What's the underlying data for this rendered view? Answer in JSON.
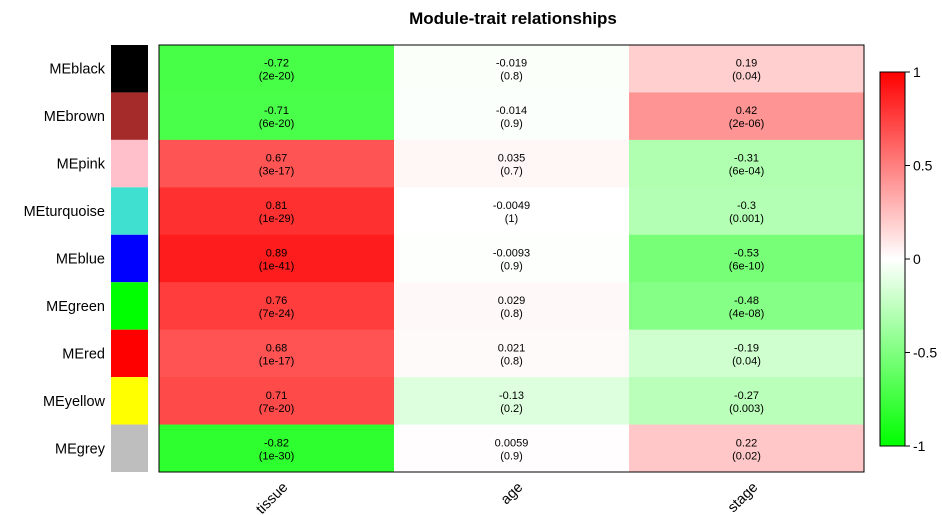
{
  "chart_data": {
    "type": "heatmap",
    "title": "Module-trait relationships",
    "rows": [
      {
        "label": "MEblack",
        "color": "#000000"
      },
      {
        "label": "MEbrown",
        "color": "#A52A2A"
      },
      {
        "label": "MEpink",
        "color": "#FFC0CB"
      },
      {
        "label": "MEturquoise",
        "color": "#40E0D0"
      },
      {
        "label": "MEblue",
        "color": "#0000FF"
      },
      {
        "label": "MEgreen",
        "color": "#00FF00"
      },
      {
        "label": "MEred",
        "color": "#FF0000"
      },
      {
        "label": "MEyellow",
        "color": "#FFFF00"
      },
      {
        "label": "MEgrey",
        "color": "#BEBEBE"
      }
    ],
    "columns": [
      "tissue",
      "age",
      "stage"
    ],
    "values": [
      [
        -0.72,
        -0.019,
        0.19
      ],
      [
        -0.71,
        -0.014,
        0.42
      ],
      [
        0.67,
        0.035,
        -0.31
      ],
      [
        0.81,
        -0.0049,
        -0.3
      ],
      [
        0.89,
        -0.0093,
        -0.53
      ],
      [
        0.76,
        0.029,
        -0.48
      ],
      [
        0.68,
        0.021,
        -0.19
      ],
      [
        0.71,
        -0.13,
        -0.27
      ],
      [
        -0.82,
        0.0059,
        0.22
      ]
    ],
    "cell_labels": [
      [
        [
          "-0.72",
          "(2e-20)"
        ],
        [
          "-0.019",
          "(0.8)"
        ],
        [
          "0.19",
          "(0.04)"
        ]
      ],
      [
        [
          "-0.71",
          "(6e-20)"
        ],
        [
          "-0.014",
          "(0.9)"
        ],
        [
          "0.42",
          "(2e-06)"
        ]
      ],
      [
        [
          "0.67",
          "(3e-17)"
        ],
        [
          "0.035",
          "(0.7)"
        ],
        [
          "-0.31",
          "(6e-04)"
        ]
      ],
      [
        [
          "0.81",
          "(1e-29)"
        ],
        [
          "-0.0049",
          "(1)"
        ],
        [
          "-0.3",
          "(0.001)"
        ]
      ],
      [
        [
          "0.89",
          "(1e-41)"
        ],
        [
          "-0.0093",
          "(0.9)"
        ],
        [
          "-0.53",
          "(6e-10)"
        ]
      ],
      [
        [
          "0.76",
          "(7e-24)"
        ],
        [
          "0.029",
          "(0.8)"
        ],
        [
          "-0.48",
          "(4e-08)"
        ]
      ],
      [
        [
          "0.68",
          "(1e-17)"
        ],
        [
          "0.021",
          "(0.8)"
        ],
        [
          "-0.19",
          "(0.04)"
        ]
      ],
      [
        [
          "0.71",
          "(7e-20)"
        ],
        [
          "-0.13",
          "(0.2)"
        ],
        [
          "-0.27",
          "(0.003)"
        ]
      ],
      [
        [
          "-0.82",
          "(1e-30)"
        ],
        [
          "0.0059",
          "(0.9)"
        ],
        [
          "0.22",
          "(0.02)"
        ]
      ]
    ],
    "color_scale": {
      "range": [
        -1,
        1
      ],
      "low_color": "#00FF00",
      "mid_color": "#FFFFFF",
      "high_color": "#FF0000",
      "ticks": [
        1,
        0.5,
        0,
        -0.5,
        -1
      ],
      "tick_labels": [
        "1",
        "0.5",
        "0",
        "-0.5",
        "-1"
      ]
    }
  }
}
